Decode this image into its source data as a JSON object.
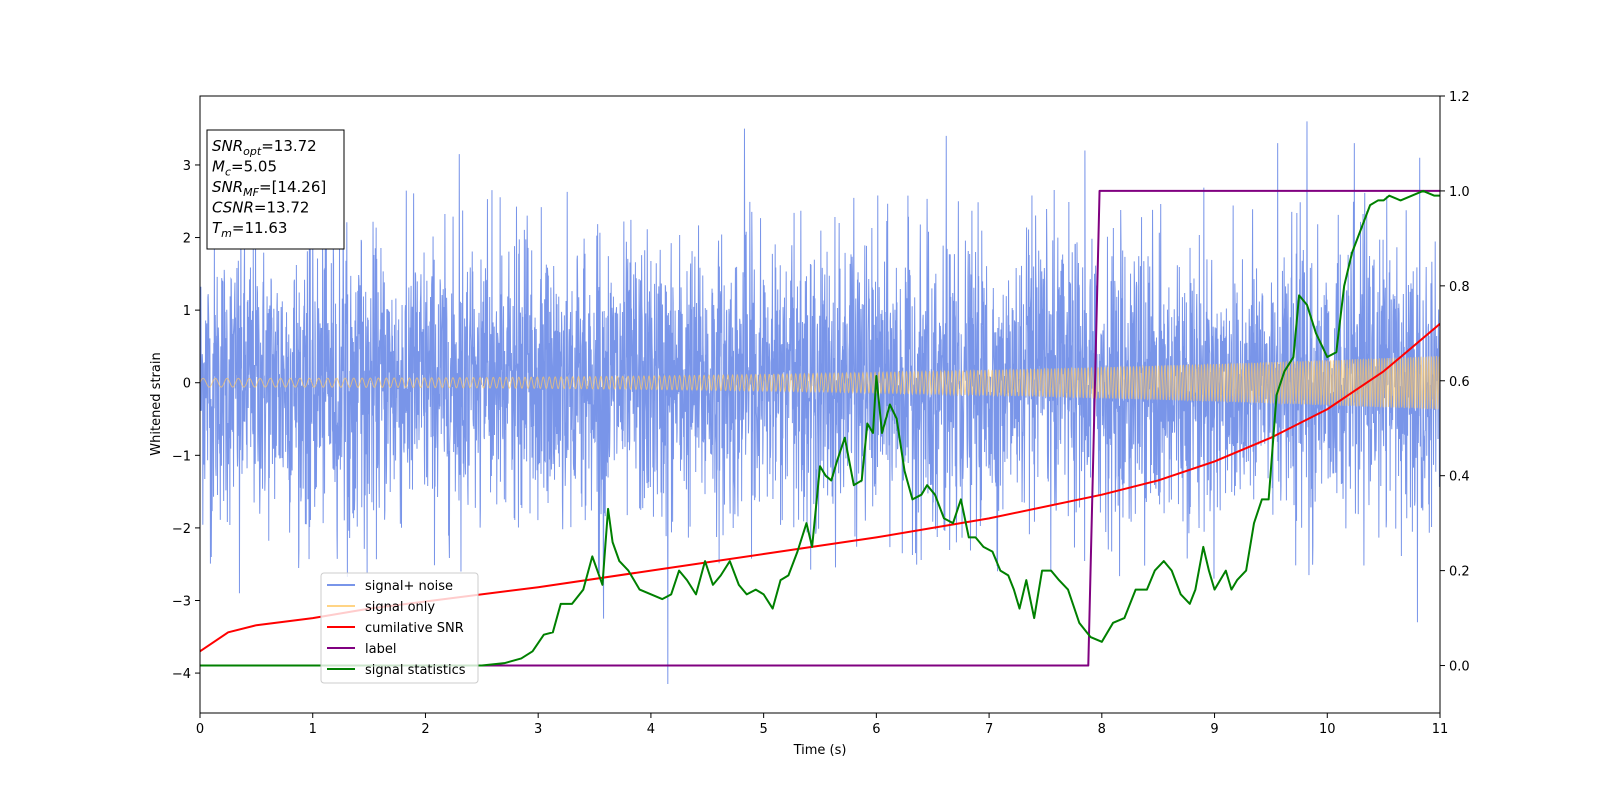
{
  "chart_data": {
    "type": "line",
    "title": "",
    "xlabel": "Time (s)",
    "ylabel": "Whitened strain",
    "y2label": "",
    "xlim": [
      0,
      11
    ],
    "ylim": [
      -4.55,
      3.95
    ],
    "y2lim": [
      -0.1,
      1.2
    ],
    "xticks": [
      "0",
      "1",
      "2",
      "3",
      "4",
      "5",
      "6",
      "7",
      "8",
      "9",
      "10",
      "11"
    ],
    "yticks": [
      "−4",
      "−3",
      "−2",
      "−1",
      "0",
      "1",
      "2",
      "3"
    ],
    "y2ticks": [
      "0.0",
      "0.2",
      "0.4",
      "0.6",
      "0.8",
      "1.0",
      "1.2"
    ],
    "grid": false,
    "legend_position": "lower-left",
    "annotation": [
      {
        "base": "SNR",
        "sub": "opt",
        "value": "=13.72"
      },
      {
        "base": "M",
        "sub": "c",
        "value": "=5.05"
      },
      {
        "base": "SNR",
        "sub": "MF",
        "value": "=[14.26]"
      },
      {
        "base": "CSNR",
        "sub": "",
        "value": "=13.72"
      },
      {
        "base": "T",
        "sub": "m",
        "value": "=11.63"
      }
    ],
    "series": [
      {
        "name": "signal+ noise",
        "axis": "left",
        "color": "#7995e9",
        "kind": "noise",
        "sigma": 0.95,
        "extremes": [
          [
            0.35,
            -2.9
          ],
          [
            1.12,
            3.0
          ],
          [
            2.3,
            3.15
          ],
          [
            3.58,
            3.5
          ],
          [
            4.15,
            -4.15
          ],
          [
            4.83,
            3.5
          ],
          [
            6.62,
            3.4
          ],
          [
            7.85,
            3.2
          ],
          [
            9.56,
            3.3
          ],
          [
            9.82,
            3.6
          ],
          [
            10.24,
            3.3
          ],
          [
            10.82,
            3.1
          ],
          [
            10.8,
            -3.3
          ],
          [
            0.1,
            -2.4
          ],
          [
            3.58,
            -3.25
          ]
        ]
      },
      {
        "name": "signal only",
        "axis": "left",
        "color": "#ffc966",
        "kind": "chirp",
        "amplitude_start": 0.06,
        "amplitude_end": 0.37
      },
      {
        "name": "cumilative SNR",
        "axis": "right",
        "color": "#ff0000",
        "x": [
          0,
          0.25,
          0.5,
          1,
          1.5,
          2,
          3,
          4,
          5,
          6,
          7,
          8,
          8.5,
          9,
          9.5,
          10,
          10.5,
          11
        ],
        "y": [
          0.03,
          0.07,
          0.085,
          0.1,
          0.12,
          0.135,
          0.165,
          0.2,
          0.235,
          0.27,
          0.31,
          0.36,
          0.39,
          0.43,
          0.48,
          0.54,
          0.62,
          0.72
        ]
      },
      {
        "name": "label",
        "axis": "right",
        "color": "#800080",
        "x": [
          0,
          7.88,
          7.98,
          11
        ],
        "y": [
          0,
          0,
          1,
          1
        ]
      },
      {
        "name": "signal statistics",
        "axis": "right",
        "color": "#008000",
        "x": [
          0,
          0.5,
          1,
          1.5,
          2,
          2.5,
          2.7,
          2.85,
          2.95,
          3.05,
          3.13,
          3.2,
          3.3,
          3.4,
          3.48,
          3.57,
          3.62,
          3.66,
          3.72,
          3.8,
          3.9,
          4.0,
          4.1,
          4.18,
          4.25,
          4.32,
          4.4,
          4.48,
          4.55,
          4.62,
          4.7,
          4.78,
          4.85,
          4.93,
          5.0,
          5.08,
          5.15,
          5.22,
          5.3,
          5.38,
          5.43,
          5.5,
          5.55,
          5.6,
          5.65,
          5.72,
          5.8,
          5.87,
          5.92,
          5.97,
          6.0,
          6.05,
          6.12,
          6.18,
          6.25,
          6.32,
          6.4,
          6.45,
          6.52,
          6.6,
          6.68,
          6.75,
          6.82,
          6.88,
          6.95,
          7.03,
          7.1,
          7.17,
          7.22,
          7.27,
          7.33,
          7.4,
          7.47,
          7.55,
          7.62,
          7.7,
          7.8,
          7.9,
          8.0,
          8.1,
          8.2,
          8.3,
          8.4,
          8.47,
          8.55,
          8.62,
          8.7,
          8.78,
          8.83,
          8.9,
          8.95,
          9.0,
          9.05,
          9.1,
          9.15,
          9.2,
          9.28,
          9.35,
          9.42,
          9.48,
          9.55,
          9.62,
          9.7,
          9.75,
          9.82,
          9.9,
          10.0,
          10.08,
          10.15,
          10.22,
          10.3,
          10.38,
          10.45,
          10.5,
          10.55,
          10.65,
          10.75,
          10.85,
          10.95,
          11.0
        ],
        "y": [
          0.0,
          0.0,
          0.0,
          0.0,
          0.0,
          0.0,
          0.005,
          0.015,
          0.03,
          0.065,
          0.07,
          0.13,
          0.13,
          0.16,
          0.23,
          0.17,
          0.33,
          0.26,
          0.22,
          0.2,
          0.16,
          0.15,
          0.14,
          0.15,
          0.2,
          0.18,
          0.15,
          0.22,
          0.17,
          0.19,
          0.22,
          0.17,
          0.15,
          0.16,
          0.15,
          0.12,
          0.18,
          0.19,
          0.24,
          0.3,
          0.25,
          0.42,
          0.4,
          0.39,
          0.43,
          0.48,
          0.38,
          0.39,
          0.51,
          0.49,
          0.61,
          0.49,
          0.55,
          0.52,
          0.41,
          0.35,
          0.36,
          0.38,
          0.36,
          0.31,
          0.3,
          0.35,
          0.27,
          0.27,
          0.25,
          0.24,
          0.2,
          0.19,
          0.16,
          0.12,
          0.18,
          0.1,
          0.2,
          0.2,
          0.18,
          0.16,
          0.09,
          0.06,
          0.05,
          0.09,
          0.1,
          0.16,
          0.16,
          0.2,
          0.22,
          0.2,
          0.15,
          0.13,
          0.16,
          0.25,
          0.2,
          0.16,
          0.18,
          0.2,
          0.16,
          0.18,
          0.2,
          0.3,
          0.35,
          0.35,
          0.57,
          0.62,
          0.65,
          0.78,
          0.76,
          0.7,
          0.65,
          0.66,
          0.8,
          0.87,
          0.92,
          0.97,
          0.98,
          0.98,
          0.99,
          0.98,
          0.99,
          1.0,
          0.99,
          0.99
        ]
      }
    ]
  }
}
